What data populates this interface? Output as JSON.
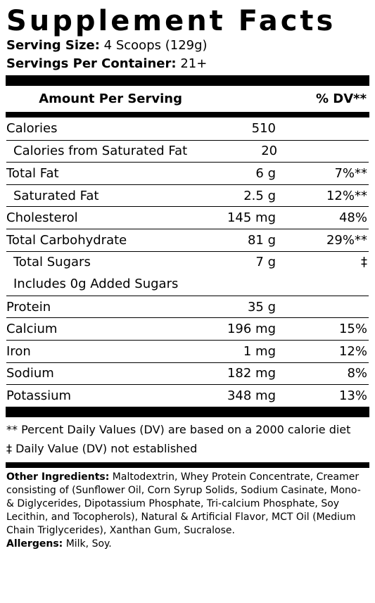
{
  "title": "Supplement Facts",
  "serving_size": {
    "label": "Serving Size:",
    "value": "4 Scoops (129g)"
  },
  "servings_per_container": {
    "label": "Servings Per Container:",
    "value": "21+"
  },
  "header": {
    "amount": "Amount Per Serving",
    "dv": "% DV**"
  },
  "nutrients": [
    {
      "name": "Calories",
      "amount": "510",
      "dv": ""
    },
    {
      "name": "Calories from Saturated Fat",
      "amount": "20",
      "dv": ""
    },
    {
      "name": "Total Fat",
      "amount": "6 g",
      "dv": "7%**"
    },
    {
      "name": "Saturated Fat",
      "amount": "2.5 g",
      "dv": "12%**"
    },
    {
      "name": "Cholesterol",
      "amount": "145 mg",
      "dv": "48%"
    },
    {
      "name": "Total Carbohydrate",
      "amount": "81 g",
      "dv": "29%**"
    },
    {
      "name": "Total Sugars",
      "amount": "7 g",
      "dv": "‡"
    },
    {
      "name": "Includes 0g Added Sugars",
      "amount": "",
      "dv": ""
    },
    {
      "name": "Protein",
      "amount": "35 g",
      "dv": ""
    },
    {
      "name": "Calcium",
      "amount": "196 mg",
      "dv": "15%"
    },
    {
      "name": "Iron",
      "amount": "1 mg",
      "dv": "12%"
    },
    {
      "name": "Sodium",
      "amount": "182 mg",
      "dv": "8%"
    },
    {
      "name": "Potassium",
      "amount": "348 mg",
      "dv": "13%"
    }
  ],
  "footnotes": [
    "** Percent Daily Values (DV) are based on a 2000 calorie diet",
    "‡ Daily Value (DV) not established"
  ],
  "ingredients": {
    "label": "Other Ingredients:",
    "text": " Maltodextrin, Whey Protein Concentrate, Creamer consisting of (Sunflower Oil, Corn Syrup Solids, Sodium Casinate, Mono- & Diglycerides, Dipotassium Phosphate, Tri-calcium Phosphate, Soy Lecithin, and Tocopherols), Natural & Artificial Flavor, MCT Oil (Medium Chain Triglycerides), Xanthan Gum, Sucralose."
  },
  "allergens": {
    "label": "Allergens:",
    "text": " Milk, Soy."
  }
}
